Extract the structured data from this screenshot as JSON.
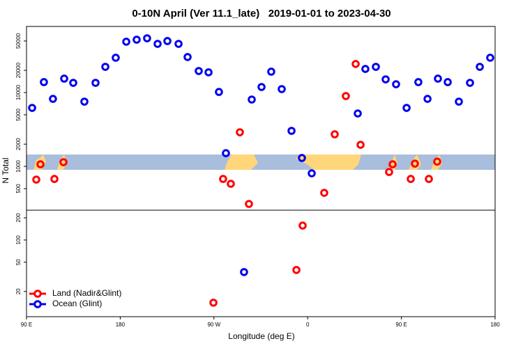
{
  "chart_data": [
    {
      "type": "scatter",
      "title": "0-10N April (Ver 11.1_late)   2019-01-01 to 2023-04-30",
      "ylabel": "N Total",
      "log_y": true,
      "xlim": [
        90,
        540
      ],
      "ylim": [
        255,
        78700
      ],
      "yticks": [
        500,
        1000,
        2000,
        5000,
        10000,
        20000,
        50000
      ],
      "series": [
        {
          "name": "Land (Nadir&Glint)",
          "color": "#ff0000",
          "x": [
            99.4,
            103.4,
            116.8,
            125.5,
            278.8,
            286.2,
            294.9,
            303.6,
            375.9,
            386.0,
            396.7,
            406.1,
            410.8,
            438.2,
            441.6,
            459.0,
            463.0,
            476.4,
            484.4
          ],
          "values": [
            662,
            1067,
            676,
            1140,
            676,
            581,
            2900,
            310,
            438,
            2720,
            8970,
            24400,
            1960,
            840,
            1067,
            676,
            1090,
            676,
            1160
          ]
        },
        {
          "name": "Ocean (Glint)",
          "color": "#0000ee",
          "x": [
            95.4,
            106.7,
            115.4,
            126.2,
            134.9,
            145.6,
            156.3,
            165.7,
            175.7,
            185.8,
            195.8,
            205.8,
            215.9,
            225.3,
            236.0,
            244.7,
            255.4,
            264.8,
            274.8,
            281.5,
            306.3,
            315.7,
            325.0,
            335.1,
            344.5,
            354.5,
            363.9,
            408.1,
            415.4,
            425.5,
            434.9,
            444.9,
            455.0,
            466.3,
            475.1,
            485.1,
            494.5,
            505.2,
            515.9,
            525.3,
            535.3
          ],
          "values": [
            6200,
            13860,
            8220,
            15450,
            13550,
            7540,
            13550,
            22330,
            29650,
            48900,
            52100,
            54400,
            45700,
            49900,
            45700,
            30300,
            19600,
            18800,
            10200,
            1510,
            8050,
            11900,
            19200,
            11150,
            3030,
            1300,
            805,
            5210,
            20900,
            22330,
            15100,
            12970,
            6200,
            13860,
            8220,
            15450,
            13860,
            7540,
            13550,
            22330,
            29650
          ]
        }
      ]
    },
    {
      "type": "scatter",
      "xlabel": "Longitude (deg E)",
      "log_y": true,
      "xlim": [
        90,
        540
      ],
      "xticks": [
        {
          "value": 90,
          "label": "90 E"
        },
        180,
        {
          "value": 270,
          "label": "90 W"
        },
        {
          "value": 360,
          "label": "0"
        },
        {
          "value": 450,
          "label": "90 E"
        },
        {
          "value": 540,
          "label": "180"
        }
      ],
      "ylim": [
        9.1,
        254
      ],
      "yticks": [
        20,
        50,
        100,
        200
      ],
      "legend": "lower left",
      "series": [
        {
          "name": "Land (Nadir&Glint)",
          "color": "#ff0000",
          "x": [
            269.5,
            349.2,
            355.2
          ],
          "values": [
            14.1,
            39.2,
            157
          ]
        },
        {
          "name": "Ocean (Glint)",
          "color": "#0000ee",
          "x": [
            298.9
          ],
          "values": [
            36.7
          ]
        }
      ]
    }
  ]
}
